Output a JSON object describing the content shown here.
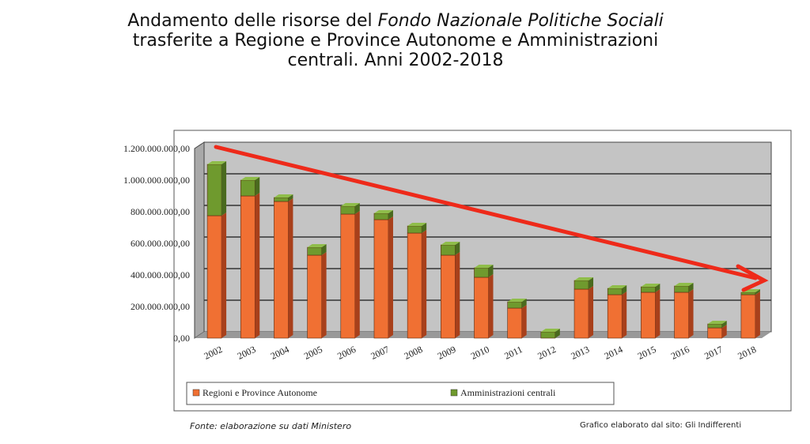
{
  "title": {
    "line1_pre": "Andamento delle risorse del ",
    "line1_italic": "Fondo Nazionale Politiche Sociali",
    "line2": "trasferite a Regione e Province Autonome e Amministrazioni",
    "line3": "centrali. Anni 2002-2018"
  },
  "source": "Fonte: elaborazione su dati Ministero",
  "credit": "Grafico elaborato dal sito: Gli Indifferenti",
  "chart_data": {
    "type": "bar",
    "stacked": true,
    "3d": true,
    "categories": [
      "2002",
      "2003",
      "2004",
      "2005",
      "2006",
      "2007",
      "2008",
      "2009",
      "2010",
      "2011",
      "2012",
      "2013",
      "2014",
      "2015",
      "2016",
      "2017",
      "2018"
    ],
    "series": [
      {
        "name": "Regioni e Province Autonome",
        "color": "#f07033",
        "values": [
          775000000,
          900000000,
          865000000,
          525000000,
          785000000,
          750000000,
          665000000,
          525000000,
          385000000,
          190000000,
          0,
          310000000,
          275000000,
          290000000,
          290000000,
          65000000,
          275000000
        ]
      },
      {
        "name": "Amministrazioni centrali",
        "color": "#6f9a2e",
        "values": [
          325000000,
          100000000,
          25000000,
          50000000,
          50000000,
          40000000,
          45000000,
          65000000,
          60000000,
          40000000,
          40000000,
          55000000,
          40000000,
          35000000,
          40000000,
          25000000,
          15000000
        ]
      }
    ],
    "yticks": [
      "0,00",
      "200.000.000,00",
      "400.000.000,00",
      "600.000.000,00",
      "800.000.000,00",
      "1.000.000.000,00",
      "1.200.000.000,00"
    ],
    "ylim": [
      0,
      1200000000
    ],
    "grid": true,
    "legend": "bottom",
    "annotation": "red downward trend arrow",
    "trend_color": "#ee2a1a"
  }
}
